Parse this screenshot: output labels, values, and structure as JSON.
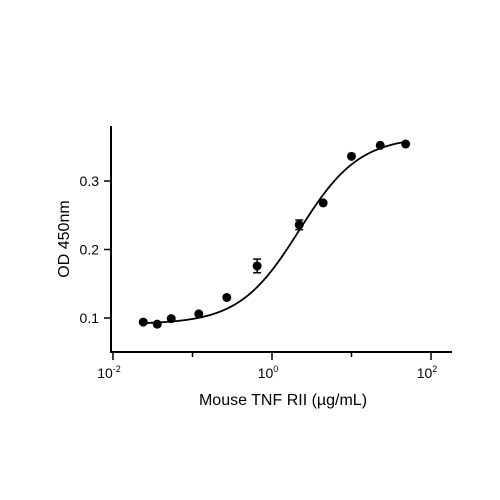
{
  "chart_data": {
    "type": "scatter",
    "xlabel": "Mouse TNF RII (µg/mL)",
    "ylabel": "OD 450nm",
    "x_scale": "log10",
    "xlim": [
      0.01,
      150
    ],
    "ylim": [
      0.05,
      0.38
    ],
    "y_ticks": [
      {
        "value": 0.1,
        "label": "0.1"
      },
      {
        "value": 0.2,
        "label": "0.2"
      },
      {
        "value": 0.3,
        "label": "0.3"
      }
    ],
    "x_ticks": [
      {
        "value": 0.01,
        "base": "10",
        "exp": "-2"
      },
      {
        "value": 1,
        "base": "10",
        "exp": "0"
      },
      {
        "value": 100,
        "base": "10",
        "exp": "2"
      }
    ],
    "points": [
      {
        "x": 0.024,
        "y": 0.094
      },
      {
        "x": 0.036,
        "y": 0.091
      },
      {
        "x": 0.054,
        "y": 0.099
      },
      {
        "x": 0.12,
        "y": 0.106
      },
      {
        "x": 0.27,
        "y": 0.13
      },
      {
        "x": 0.65,
        "y": 0.176,
        "err": 0.01
      },
      {
        "x": 2.2,
        "y": 0.236,
        "err": 0.007
      },
      {
        "x": 4.4,
        "y": 0.268
      },
      {
        "x": 10,
        "y": 0.336
      },
      {
        "x": 23,
        "y": 0.352
      },
      {
        "x": 48,
        "y": 0.354
      }
    ],
    "fit": {
      "model": "4PL",
      "bottom": 0.091,
      "top": 0.365,
      "ec50": 2.2,
      "hill": 1.15
    }
  }
}
